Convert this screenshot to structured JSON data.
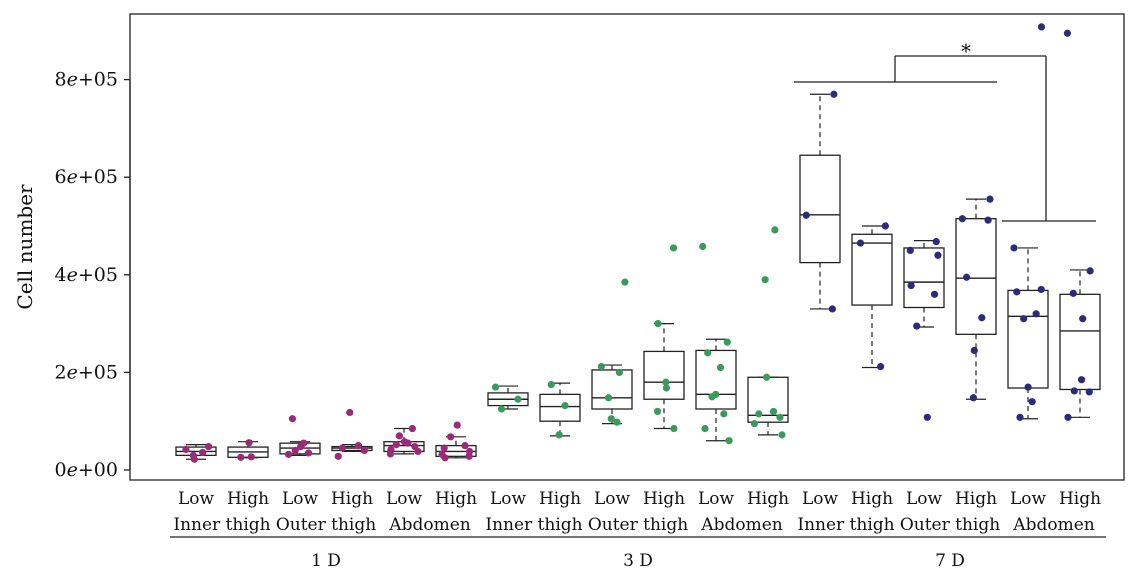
{
  "chart_data": {
    "type": "boxplot",
    "ylabel": "Cell number",
    "ylim": [
      0,
      920000
    ],
    "yticks": [
      {
        "value": 0,
        "label": "0e+00"
      },
      {
        "value": 200000,
        "label": "2e+05"
      },
      {
        "value": 400000,
        "label": "4e+05"
      },
      {
        "value": 600000,
        "label": "6e+05"
      },
      {
        "value": 800000,
        "label": "8e+05"
      }
    ],
    "days": [
      "1 D",
      "3 D",
      "7 D"
    ],
    "regions": [
      "Inner thigh",
      "Outer thigh",
      "Abdomen"
    ],
    "levels": [
      "Low",
      "High"
    ],
    "colors": {
      "1 D": "#9b2a78",
      "3 D": "#3a9a5c",
      "7 D": "#2e2a7a"
    },
    "significance": {
      "label": "*"
    },
    "boxes": [
      {
        "day": "1 D",
        "region": "Inner thigh",
        "level": "Low",
        "whisker_low": 22000,
        "q1": 30000,
        "median": 38000,
        "q3": 47000,
        "whisker_high": 52000,
        "points": [
          22000,
          30000,
          36000,
          42000,
          48000
        ]
      },
      {
        "day": "1 D",
        "region": "Inner thigh",
        "level": "High",
        "whisker_low": 25000,
        "q1": 26000,
        "median": 37000,
        "q3": 47000,
        "whisker_high": 58000,
        "points": [
          26000,
          27000,
          56000
        ]
      },
      {
        "day": "1 D",
        "region": "Outer thigh",
        "level": "Low",
        "whisker_low": 30000,
        "q1": 33000,
        "median": 45000,
        "q3": 55000,
        "whisker_high": 58000,
        "points": [
          32000,
          35000,
          40000,
          48000,
          55000,
          105000
        ]
      },
      {
        "day": "1 D",
        "region": "Outer thigh",
        "level": "High",
        "whisker_low": 38000,
        "q1": 40000,
        "median": 45000,
        "q3": 48000,
        "whisker_high": 52000,
        "points": [
          28000,
          40000,
          45000,
          50000,
          118000
        ]
      },
      {
        "day": "1 D",
        "region": "Abdomen",
        "level": "Low",
        "whisker_low": 33000,
        "q1": 38000,
        "median": 50000,
        "q3": 58000,
        "whisker_high": 85000,
        "points": [
          33000,
          38000,
          42000,
          48000,
          52000,
          55000,
          58000,
          70000,
          85000
        ]
      },
      {
        "day": "1 D",
        "region": "Abdomen",
        "level": "High",
        "whisker_low": 25000,
        "q1": 28000,
        "median": 38000,
        "q3": 50000,
        "whisker_high": 68000,
        "points": [
          25000,
          28000,
          32000,
          38000,
          45000,
          50000,
          68000,
          92000
        ]
      },
      {
        "day": "3 D",
        "region": "Inner thigh",
        "level": "Low",
        "whisker_low": 125000,
        "q1": 132000,
        "median": 145000,
        "q3": 158000,
        "whisker_high": 172000,
        "points": [
          125000,
          145000,
          170000
        ]
      },
      {
        "day": "3 D",
        "region": "Inner thigh",
        "level": "High",
        "whisker_low": 70000,
        "q1": 100000,
        "median": 130000,
        "q3": 155000,
        "whisker_high": 178000,
        "points": [
          72000,
          132000,
          175000
        ]
      },
      {
        "day": "3 D",
        "region": "Outer thigh",
        "level": "Low",
        "whisker_low": 95000,
        "q1": 125000,
        "median": 148000,
        "q3": 205000,
        "whisker_high": 215000,
        "points": [
          98000,
          105000,
          148000,
          200000,
          212000,
          385000
        ]
      },
      {
        "day": "3 D",
        "region": "Outer thigh",
        "level": "High",
        "whisker_low": 85000,
        "q1": 145000,
        "median": 180000,
        "q3": 243000,
        "whisker_high": 300000,
        "points": [
          85000,
          120000,
          168000,
          180000,
          300000,
          455000
        ]
      },
      {
        "day": "3 D",
        "region": "Abdomen",
        "level": "Low",
        "whisker_low": 60000,
        "q1": 125000,
        "median": 155000,
        "q3": 245000,
        "whisker_high": 268000,
        "points": [
          60000,
          85000,
          115000,
          150000,
          155000,
          210000,
          240000,
          262000,
          458000
        ]
      },
      {
        "day": "3 D",
        "region": "Abdomen",
        "level": "High",
        "whisker_low": 72000,
        "q1": 98000,
        "median": 112000,
        "q3": 190000,
        "whisker_high": 190000,
        "points": [
          72000,
          95000,
          108000,
          115000,
          120000,
          190000,
          390000,
          492000
        ]
      },
      {
        "day": "7 D",
        "region": "Inner thigh",
        "level": "Low",
        "whisker_low": 330000,
        "q1": 425000,
        "median": 523000,
        "q3": 645000,
        "whisker_high": 770000,
        "points": [
          330000,
          522000,
          770000
        ]
      },
      {
        "day": "7 D",
        "region": "Inner thigh",
        "level": "High",
        "whisker_low": 210000,
        "q1": 338000,
        "median": 465000,
        "q3": 483000,
        "whisker_high": 500000,
        "points": [
          212000,
          465000,
          500000
        ]
      },
      {
        "day": "7 D",
        "region": "Outer thigh",
        "level": "Low",
        "whisker_low": 293000,
        "q1": 333000,
        "median": 385000,
        "q3": 455000,
        "whisker_high": 470000,
        "points": [
          108000,
          295000,
          360000,
          378000,
          440000,
          450000,
          468000
        ]
      },
      {
        "day": "7 D",
        "region": "Outer thigh",
        "level": "High",
        "whisker_low": 145000,
        "q1": 278000,
        "median": 393000,
        "q3": 515000,
        "whisker_high": 555000,
        "points": [
          148000,
          245000,
          312000,
          395000,
          512000,
          515000,
          555000
        ]
      },
      {
        "day": "7 D",
        "region": "Abdomen",
        "level": "Low",
        "whisker_low": 105000,
        "q1": 168000,
        "median": 315000,
        "q3": 368000,
        "whisker_high": 455000,
        "points": [
          108000,
          140000,
          170000,
          310000,
          320000,
          365000,
          370000,
          455000,
          908000
        ]
      },
      {
        "day": "7 D",
        "region": "Abdomen",
        "level": "High",
        "whisker_low": 108000,
        "q1": 165000,
        "median": 285000,
        "q3": 360000,
        "whisker_high": 410000,
        "points": [
          108000,
          160000,
          162000,
          185000,
          310000,
          362000,
          408000,
          895000
        ]
      }
    ]
  }
}
